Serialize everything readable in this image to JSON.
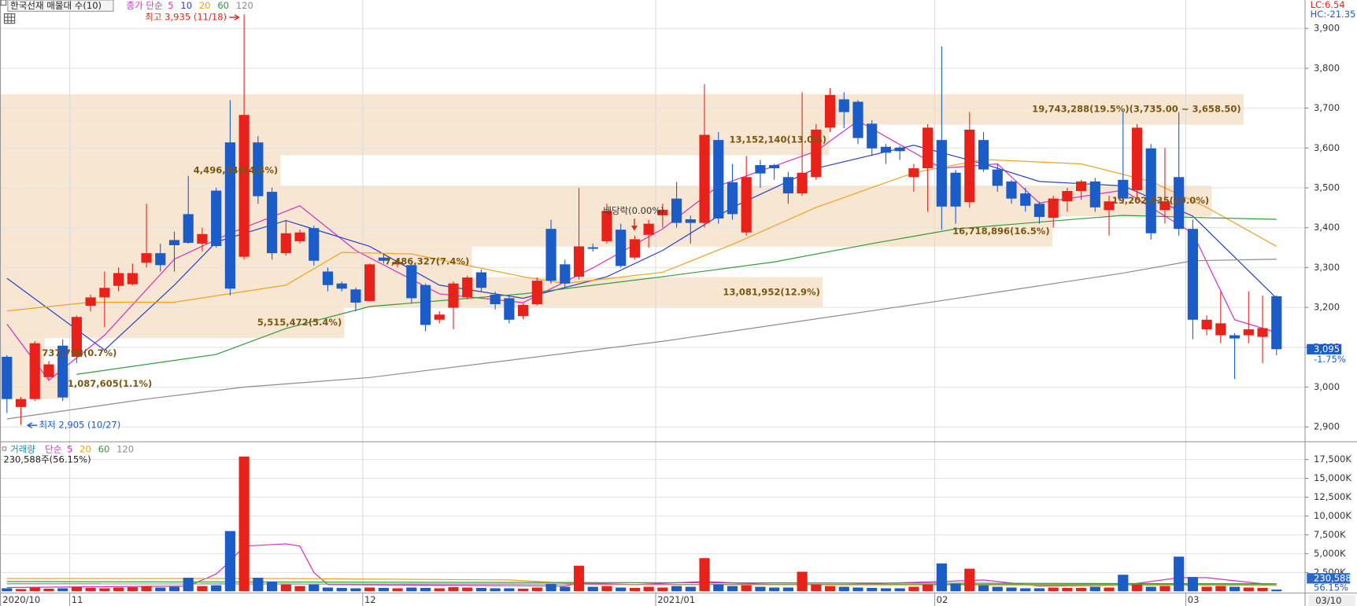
{
  "chart_data": [
    {
      "type": "candlestick",
      "title": "한국선재 매물대 수(10)",
      "legend_title": "종가 단순",
      "categories": [
        "2020/10",
        null,
        null,
        null,
        null,
        "11",
        null,
        null,
        null,
        null,
        null,
        null,
        null,
        null,
        null,
        null,
        null,
        null,
        null,
        null,
        null,
        null,
        null,
        null,
        null,
        null,
        "12",
        null,
        null,
        null,
        null,
        null,
        null,
        null,
        null,
        null,
        null,
        null,
        null,
        null,
        null,
        null,
        null,
        null,
        null,
        null,
        null,
        "2021/01",
        null,
        null,
        null,
        null,
        null,
        null,
        null,
        null,
        null,
        null,
        null,
        null,
        null,
        null,
        null,
        null,
        null,
        null,
        null,
        "02",
        null,
        null,
        null,
        null,
        null,
        null,
        null,
        null,
        null,
        null,
        null,
        null,
        null,
        null,
        null,
        null,
        null,
        "03",
        null,
        null,
        null,
        null,
        null,
        null
      ],
      "date_label": "03/10",
      "series": [
        {
          "name": "한국선재",
          "up_color": "#e8221b",
          "down_color": "#1c5cc8",
          "open": [
            3076,
            2950,
            2970,
            3025,
            3104,
            3076,
            3204,
            3225,
            3254,
            3258,
            3312,
            3336,
            3369,
            3434,
            3360,
            3493,
            3614,
            3327,
            3614,
            3490,
            3336,
            3366,
            3399,
            3290,
            3260,
            3245,
            3216,
            3325,
            3308,
            3306,
            3256,
            3169,
            3199,
            3225,
            3288,
            3232,
            3223,
            3178,
            3208,
            3397,
            3308,
            3277,
            3351,
            3366,
            3395,
            3325,
            3382,
            3431,
            3473,
            3421,
            3412,
            3620,
            3514,
            3388,
            3557,
            3557,
            3527,
            3486,
            3527,
            3651,
            3722,
            3716,
            3661,
            3603,
            3601,
            3527,
            3549,
            3620,
            3538,
            3464,
            3620,
            3546,
            3516,
            3486,
            3460,
            3425,
            3466,
            3492,
            3516,
            3444,
            3520,
            3494,
            3599,
            3444,
            3527,
            3397,
            3145,
            3130,
            3130,
            3130,
            3126,
            3228
          ],
          "high": [
            3080,
            2975,
            3115,
            3065,
            3120,
            3180,
            3232,
            3290,
            3300,
            3310,
            3460,
            3360,
            3390,
            3530,
            3400,
            3500,
            3720,
            3935,
            3630,
            3500,
            3420,
            3395,
            3405,
            3300,
            3265,
            3250,
            3310,
            3335,
            3320,
            3315,
            3260,
            3190,
            3265,
            3280,
            3295,
            3240,
            3230,
            3210,
            3275,
            3420,
            3320,
            3500,
            3360,
            3460,
            3410,
            3380,
            3420,
            3460,
            3515,
            3430,
            3760,
            3640,
            3560,
            3580,
            3570,
            3560,
            3540,
            3740,
            3660,
            3750,
            3740,
            3720,
            3670,
            3610,
            3605,
            3560,
            3660,
            3855,
            3545,
            3690,
            3640,
            3560,
            3520,
            3500,
            3465,
            3480,
            3500,
            3520,
            3525,
            3480,
            3690,
            3660,
            3610,
            3600,
            3690,
            3420,
            3180,
            3240,
            3135,
            3240,
            3230,
            3230
          ],
          "low": [
            2935,
            2905,
            2965,
            3020,
            2965,
            3060,
            3190,
            3150,
            3240,
            3255,
            3300,
            3290,
            3290,
            3360,
            3340,
            3350,
            3230,
            3320,
            3460,
            3320,
            3330,
            3360,
            3305,
            3240,
            3240,
            3190,
            3215,
            3310,
            3300,
            3210,
            3140,
            3160,
            3145,
            3220,
            3240,
            3195,
            3160,
            3170,
            3205,
            3260,
            3250,
            3270,
            3340,
            3360,
            3300,
            3320,
            3350,
            3400,
            3400,
            3360,
            3400,
            3410,
            3420,
            3380,
            3500,
            3520,
            3460,
            3480,
            3520,
            3640,
            3650,
            3610,
            3580,
            3560,
            3570,
            3490,
            3440,
            3395,
            3410,
            3450,
            3540,
            3490,
            3460,
            3440,
            3410,
            3400,
            3440,
            3470,
            3440,
            3380,
            3460,
            3470,
            3370,
            3410,
            3380,
            3120,
            3130,
            3110,
            3020,
            3110,
            3060,
            3080
          ],
          "close": [
            2970,
            2970,
            3110,
            3057,
            2974,
            3176,
            3225,
            3249,
            3286,
            3286,
            3336,
            3306,
            3356,
            3362,
            3384,
            3354,
            3247,
            3683,
            3479,
            3336,
            3386,
            3388,
            3317,
            3256,
            3247,
            3212,
            3308,
            3317,
            3314,
            3223,
            3156,
            3182,
            3260,
            3275,
            3249,
            3208,
            3169,
            3206,
            3267,
            3267,
            3260,
            3353,
            3347,
            3442,
            3304,
            3371,
            3410,
            3445,
            3412,
            3412,
            3633,
            3423,
            3434,
            3527,
            3536,
            3549,
            3486,
            3538,
            3646,
            3733,
            3690,
            3625,
            3599,
            3588,
            3592,
            3549,
            3651,
            3453,
            3453,
            3646,
            3546,
            3505,
            3473,
            3455,
            3427,
            3473,
            3492,
            3516,
            3451,
            3466,
            3473,
            3651,
            3386,
            3466,
            3397,
            3169,
            3169,
            3160,
            3122,
            3145,
            3148,
            3095
          ]
        }
      ],
      "ma": [
        {
          "name": "5",
          "color": "#d42fc4",
          "x": [
            0,
            3,
            7,
            12,
            16,
            21,
            25,
            31,
            37,
            42,
            47,
            51,
            58,
            61,
            67,
            71,
            74,
            80,
            85,
            88,
            91
          ],
          "values": [
            3158,
            3017,
            3130,
            3321,
            3386,
            3455,
            3343,
            3234,
            3212,
            3299,
            3397,
            3505,
            3592,
            3668,
            3549,
            3560,
            3462,
            3494,
            3386,
            3169,
            3137
          ]
        },
        {
          "name": "10",
          "color": "#2b3fcf",
          "x": [
            0,
            7,
            12,
            15,
            20,
            26,
            31,
            37,
            43,
            47,
            52,
            58,
            65,
            70,
            74,
            80,
            85,
            91
          ],
          "values": [
            3273,
            3093,
            3256,
            3364,
            3418,
            3353,
            3256,
            3223,
            3277,
            3343,
            3451,
            3549,
            3607,
            3560,
            3516,
            3505,
            3429,
            3223
          ]
        },
        {
          "name": "20",
          "color": "#f0a21e",
          "x": [
            0,
            6,
            12,
            20,
            24,
            29,
            37,
            40,
            47,
            52,
            58,
            65,
            70,
            77,
            82,
            86,
            91
          ],
          "values": [
            3191,
            3213,
            3213,
            3256,
            3338,
            3334,
            3277,
            3260,
            3288,
            3358,
            3451,
            3538,
            3571,
            3560,
            3516,
            3451,
            3353
          ]
        },
        {
          "name": "60",
          "color": "#2f9c3c",
          "x": [
            5,
            15,
            20,
            26,
            37,
            47,
            55,
            62,
            68,
            74,
            80,
            86,
            91
          ],
          "values": [
            3032,
            3082,
            3147,
            3202,
            3234,
            3277,
            3314,
            3360,
            3397,
            3414,
            3431,
            3425,
            3421
          ]
        },
        {
          "name": "120",
          "color": "#8c8c8c",
          "x": [
            0,
            10,
            17,
            26,
            47,
            67,
            80,
            85,
            91
          ],
          "values": [
            2920,
            2970,
            3000,
            3024,
            3115,
            3217,
            3286,
            3317,
            3321
          ]
        }
      ],
      "supply_zones": [
        {
          "high": 3735,
          "low": 3658.5,
          "percent": 19.5,
          "label": "19,743,288(19.5%)(3,735.00 ~ 3,658.50)"
        },
        {
          "high": 3658.5,
          "low": 3582,
          "percent": 13.0,
          "label": "13,152,140(13.0%)"
        },
        {
          "high": 3582,
          "low": 3505.5,
          "percent": 4.4,
          "label": "4,496,340(4.4%)"
        },
        {
          "high": 3505.5,
          "low": 3429,
          "percent": 19.0,
          "label": "19,202,935(19.0%)"
        },
        {
          "high": 3429,
          "low": 3352.5,
          "percent": 16.5,
          "label": "16,718,896(16.5%)"
        },
        {
          "high": 3352.5,
          "low": 3276,
          "percent": 7.4,
          "label": "7,486,327(7.4%)"
        },
        {
          "high": 3276,
          "low": 3199.5,
          "percent": 12.9,
          "label": "13,081,952(12.9%)"
        },
        {
          "high": 3199.5,
          "low": 3123,
          "percent": 5.4,
          "label": "5,515,472(5.4%)"
        },
        {
          "high": 3123,
          "low": 3046.5,
          "percent": 0.7,
          "label": "737,798(0.7%)"
        },
        {
          "high": 3046.5,
          "low": 2970,
          "percent": 1.1,
          "label": "1,087,605(1.1%)"
        }
      ],
      "high_label": "최고 3,935 (11/18)",
      "low_label": "최저 2,905 (10/27)",
      "event_label": "배당락(0.00%)",
      "lc": "LC:6.54",
      "hc": "HC:-21.35",
      "last_price": {
        "value": 3095,
        "label": "3,095"
      },
      "change": {
        "value": -1.75,
        "label": "-1.75%"
      },
      "ylim": [
        2865,
        3967
      ],
      "yticks": [
        {
          "value": 2900,
          "label": "2,900"
        },
        {
          "value": 3000,
          "label": "3,000"
        },
        {
          "value": 3100,
          "label": "3,100"
        },
        {
          "value": 3200,
          "label": "3,200"
        },
        {
          "value": 3300,
          "label": "3,300"
        },
        {
          "value": 3400,
          "label": "3,400"
        },
        {
          "value": 3500,
          "label": "3,500"
        },
        {
          "value": 3600,
          "label": "3,600"
        },
        {
          "value": 3700,
          "label": "3,700"
        },
        {
          "value": 3800,
          "label": "3,800"
        },
        {
          "value": 3900,
          "label": "3,900"
        }
      ],
      "grid": true
    },
    {
      "type": "volume",
      "title": "거래량",
      "legend_title": "단순",
      "summary": "230,588주(56.15%)",
      "values": [
        400,
        300,
        500,
        350,
        400,
        600,
        450,
        400,
        500,
        550,
        700,
        500,
        600,
        1800,
        700,
        800,
        8000,
        17900,
        1800,
        1300,
        900,
        700,
        900,
        500,
        450,
        400,
        500,
        450,
        400,
        500,
        450,
        400,
        550,
        500,
        450,
        400,
        400,
        350,
        500,
        1000,
        600,
        3400,
        600,
        700,
        500,
        450,
        600,
        500,
        700,
        600,
        4400,
        900,
        700,
        800,
        600,
        500,
        500,
        2600,
        900,
        700,
        600,
        500,
        450,
        400,
        400,
        600,
        900,
        3700,
        1000,
        3000,
        800,
        600,
        500,
        400,
        400,
        500,
        450,
        450,
        600,
        500,
        2200,
        900,
        600,
        700,
        4600,
        1900,
        600,
        700,
        600,
        500,
        450,
        230.588
      ],
      "ma": [
        {
          "name": "5",
          "color": "#d42fc4",
          "x": [
            0,
            13,
            15,
            16,
            17,
            20,
            21,
            22,
            23,
            40,
            41,
            45,
            50,
            55,
            60,
            67,
            70,
            74,
            80,
            84,
            86,
            91
          ],
          "values": [
            500,
            700,
            2300,
            4000,
            6000,
            6300,
            6000,
            2500,
            900,
            700,
            1100,
            900,
            1300,
            900,
            900,
            1300,
            1500,
            700,
            800,
            1800,
            1800,
            800
          ]
        },
        {
          "name": "20",
          "color": "#f0a21e",
          "x": [
            0,
            20,
            36,
            42,
            91
          ],
          "values": [
            1700,
            1700,
            1500,
            900,
            800
          ]
        },
        {
          "name": "60",
          "color": "#2f9c3c",
          "x": [
            0,
            91
          ],
          "values": [
            1300,
            1000
          ]
        },
        {
          "name": "120",
          "color": "#8c8c8c",
          "x": [
            0,
            91
          ],
          "values": [
            1000,
            900
          ]
        }
      ],
      "last_volume": {
        "value": 230.588,
        "label": "230,588"
      },
      "ratio": {
        "value": 56.15,
        "label": "56.15%"
      },
      "ylim": [
        0,
        19400
      ],
      "yticks": [
        {
          "value": 2500,
          "label": "2,500K"
        },
        {
          "value": 5000,
          "label": "5,000K"
        },
        {
          "value": 7500,
          "label": "7,500K"
        },
        {
          "value": 10000,
          "label": "10,000K"
        },
        {
          "value": 12500,
          "label": "12,500K"
        },
        {
          "value": 15000,
          "label": "15,000K"
        },
        {
          "value": 17500,
          "label": "17,500K"
        }
      ],
      "grid": true
    }
  ]
}
